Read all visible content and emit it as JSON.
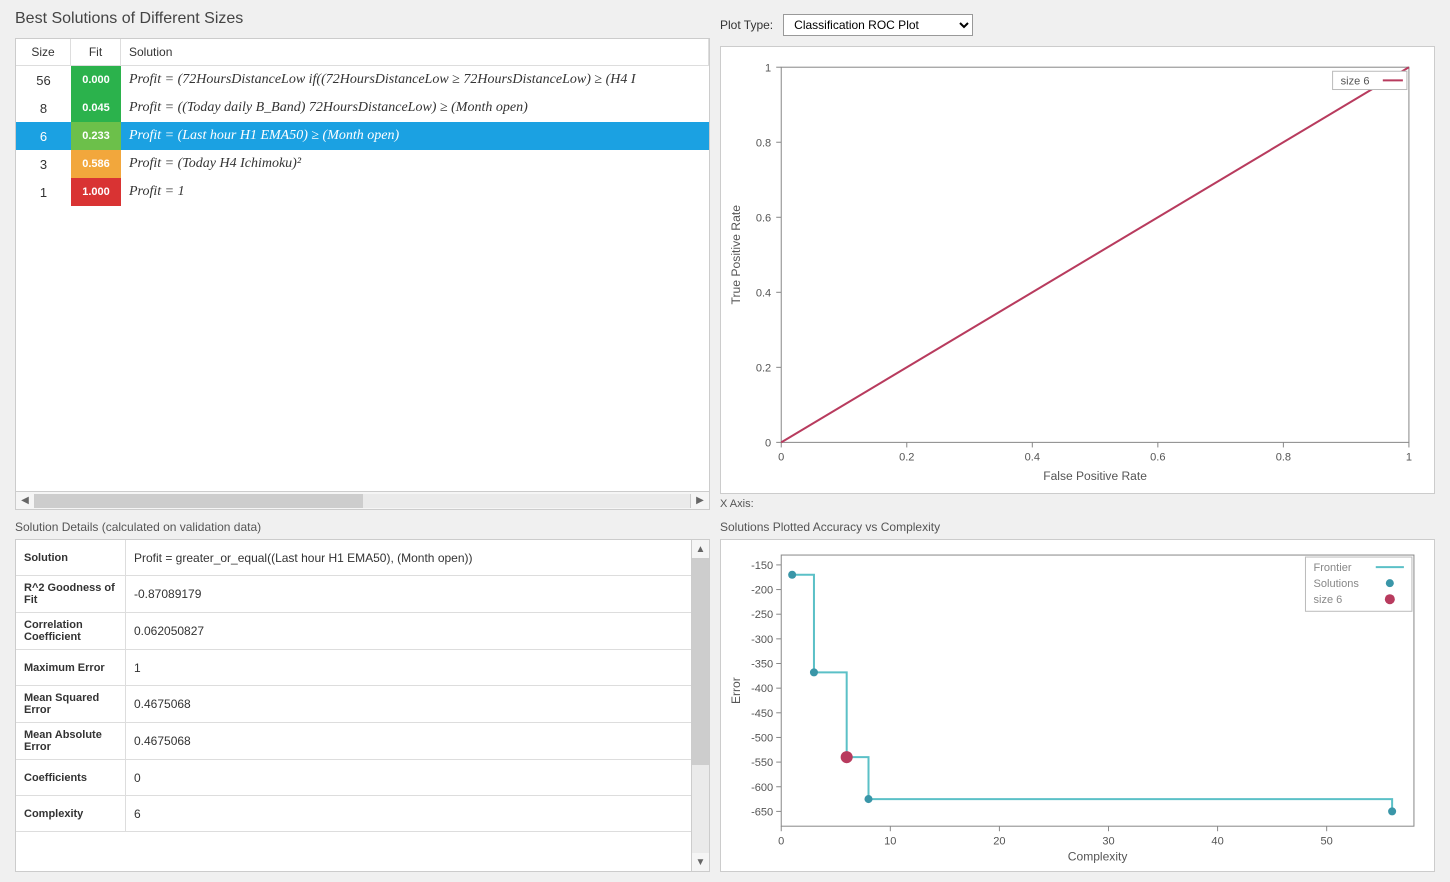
{
  "title": "Best Solutions of Different Sizes",
  "plot_type_label": "Plot Type:",
  "plot_type_selected": "Classification ROC Plot",
  "xaxis_label": "X Axis:",
  "table": {
    "headers": {
      "size": "Size",
      "fit": "Fit",
      "solution": "Solution"
    },
    "rows": [
      {
        "size": "56",
        "fit": "0.000",
        "fit_color": "#2bb24c",
        "solution": "Profit = (72HoursDistanceLow if((72HoursDistanceLow ≥ 72HoursDistanceLow) ≥ (H4 I",
        "selected": false
      },
      {
        "size": "8",
        "fit": "0.045",
        "fit_color": "#2bb24c",
        "solution": "Profit = ((Today daily B_Band) 72HoursDistanceLow) ≥ (Month open)",
        "selected": false
      },
      {
        "size": "6",
        "fit": "0.233",
        "fit_color": "#6cc04a",
        "solution": "Profit = (Last hour H1 EMA50) ≥ (Month open)",
        "selected": true
      },
      {
        "size": "3",
        "fit": "0.586",
        "fit_color": "#f2a73c",
        "solution": "Profit = (Today H4 Ichimoku)²",
        "selected": false
      },
      {
        "size": "1",
        "fit": "1.000",
        "fit_color": "#d93333",
        "solution": "Profit = 1",
        "selected": false
      }
    ]
  },
  "details": {
    "title": "Solution Details (calculated on validation data)",
    "rows": [
      {
        "label": "Solution",
        "value": "Profit = greater_or_equal((Last hour H1 EMA50), (Month open))"
      },
      {
        "label": "R^2 Goodness of Fit",
        "value": "-0.87089179"
      },
      {
        "label": "Correlation Coefficient",
        "value": "0.062050827"
      },
      {
        "label": "Maximum Error",
        "value": "1"
      },
      {
        "label": "Mean Squared Error",
        "value": "0.4675068"
      },
      {
        "label": "Mean Absolute Error",
        "value": "0.4675068"
      },
      {
        "label": "Coefficients",
        "value": "0"
      },
      {
        "label": "Complexity",
        "value": "6"
      }
    ]
  },
  "roc_chart": {
    "type": "line",
    "title_legend": "size 6",
    "xlabel": "False Positive Rate",
    "ylabel": "True Positive Rate",
    "xlim": [
      0,
      1
    ],
    "ylim": [
      0,
      1
    ],
    "xtick_step": 0.2,
    "ytick_step": 0.2,
    "series": [
      {
        "name": "size 6",
        "color": "#b83b5e",
        "width": 2,
        "points": [
          [
            0,
            0
          ],
          [
            1,
            1
          ]
        ]
      }
    ],
    "background_color": "#ffffff",
    "axis_color": "#888888",
    "tick_fontsize": 11,
    "label_fontsize": 12
  },
  "complexity_chart": {
    "type": "scatter-step",
    "title": "Solutions Plotted Accuracy vs Complexity",
    "xlabel": "Complexity",
    "ylabel": "Error",
    "xlim": [
      0,
      58
    ],
    "ylim": [
      -680,
      -130
    ],
    "xticks": [
      0,
      10,
      20,
      30,
      40,
      50
    ],
    "yticks": [
      -150,
      -200,
      -250,
      -300,
      -350,
      -400,
      -450,
      -500,
      -550,
      -600,
      -650
    ],
    "frontier_color": "#5bc0c7",
    "frontier_width": 2,
    "solutions_color": "#3a96a8",
    "selected_color": "#b83b5e",
    "marker_radius": 4,
    "selected_radius": 6,
    "frontier_points": [
      [
        1,
        -170
      ],
      [
        3,
        -368
      ],
      [
        6,
        -540
      ],
      [
        8,
        -625
      ],
      [
        56,
        -650
      ]
    ],
    "solutions_points": [
      [
        1,
        -170
      ],
      [
        3,
        -368
      ],
      [
        8,
        -625
      ],
      [
        56,
        -650
      ]
    ],
    "selected_point": [
      6,
      -540
    ],
    "legend": {
      "frontier": "Frontier",
      "solutions": "Solutions",
      "selected": "size 6"
    },
    "background_color": "#ffffff",
    "axis_color": "#888888",
    "tick_fontsize": 11,
    "label_fontsize": 12
  }
}
